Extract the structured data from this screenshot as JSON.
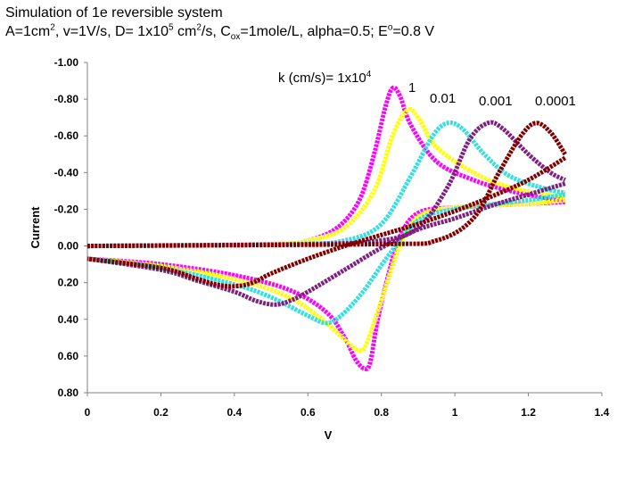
{
  "title": {
    "line1": "Simulation of 1e reversible system",
    "line2_parts": [
      {
        "t": "A=1cm"
      },
      {
        "t": "2",
        "s": "sup"
      },
      {
        "t": ", v=1V/s, D= 1x10"
      },
      {
        "t": "5",
        "s": "sup"
      },
      {
        "t": " cm"
      },
      {
        "t": "2",
        "s": "sup"
      },
      {
        "t": "/s, C"
      },
      {
        "t": "ox",
        "s": "sub"
      },
      {
        "t": "=1mole/L, alpha=0.5; E"
      },
      {
        "t": "o",
        "s": "sup"
      },
      {
        "t": "=0.8 V"
      }
    ]
  },
  "chart_data": {
    "type": "scatter",
    "xlabel": "V",
    "ylabel": "Current",
    "xlim": [
      0,
      1.4
    ],
    "ylim": [
      -1.0,
      0.8
    ],
    "y_inverted": true,
    "grid": false,
    "x_ticks": [
      "0",
      "0.2",
      "0.4",
      "0.6",
      "0.8",
      "1",
      "1.2",
      "1.4"
    ],
    "x_tick_values": [
      0,
      0.2,
      0.4,
      0.6,
      0.8,
      1.0,
      1.2,
      1.4
    ],
    "y_ticks": [
      "-1.00",
      "-0.80",
      "-0.60",
      "-0.40",
      "-0.20",
      "0.00",
      "0.20",
      "0.40",
      "0.60",
      "0.80"
    ],
    "y_tick_values": [
      -1.0,
      -0.8,
      -0.6,
      -0.4,
      -0.2,
      0.0,
      0.2,
      0.4,
      0.6,
      0.8
    ],
    "annotations": {
      "k_label": {
        "t": "k (cm/s)= 1x10",
        "sup": "4"
      },
      "labels": [
        "1",
        "0.01",
        "0.001",
        "0.0001"
      ]
    },
    "series": [
      {
        "label": "1x10^4",
        "color": "#ff00ff",
        "forward": [
          [
            0,
            0
          ],
          [
            0.5,
            -0.01
          ],
          [
            0.6,
            -0.03
          ],
          [
            0.68,
            -0.1
          ],
          [
            0.74,
            -0.25
          ],
          [
            0.78,
            -0.5
          ],
          [
            0.81,
            -0.75
          ],
          [
            0.83,
            -0.86
          ],
          [
            0.85,
            -0.82
          ],
          [
            0.88,
            -0.66
          ],
          [
            0.95,
            -0.46
          ],
          [
            1.05,
            -0.36
          ],
          [
            1.15,
            -0.3
          ],
          [
            1.25,
            -0.26
          ],
          [
            1.3,
            -0.25
          ]
        ],
        "reverse": [
          [
            1.3,
            -0.24
          ],
          [
            1.2,
            -0.23
          ],
          [
            1.0,
            -0.21
          ],
          [
            0.9,
            -0.18
          ],
          [
            0.85,
            -0.05
          ],
          [
            0.82,
            0.15
          ],
          [
            0.79,
            0.4
          ],
          [
            0.77,
            0.63
          ],
          [
            0.755,
            0.67
          ],
          [
            0.73,
            0.62
          ],
          [
            0.7,
            0.5
          ],
          [
            0.65,
            0.36
          ],
          [
            0.55,
            0.24
          ],
          [
            0.4,
            0.16
          ],
          [
            0.2,
            0.1
          ],
          [
            0,
            0.07
          ]
        ]
      },
      {
        "label": "1",
        "color": "#ffff00",
        "forward": [
          [
            0,
            0
          ],
          [
            0.5,
            -0.01
          ],
          [
            0.6,
            -0.03
          ],
          [
            0.7,
            -0.1
          ],
          [
            0.78,
            -0.3
          ],
          [
            0.83,
            -0.6
          ],
          [
            0.87,
            -0.74
          ],
          [
            0.9,
            -0.7
          ],
          [
            0.95,
            -0.54
          ],
          [
            1.05,
            -0.4
          ],
          [
            1.15,
            -0.32
          ],
          [
            1.25,
            -0.28
          ],
          [
            1.3,
            -0.26
          ]
        ],
        "reverse": [
          [
            1.3,
            -0.25
          ],
          [
            1.2,
            -0.23
          ],
          [
            1.0,
            -0.21
          ],
          [
            0.9,
            -0.16
          ],
          [
            0.85,
            0.0
          ],
          [
            0.8,
            0.3
          ],
          [
            0.76,
            0.53
          ],
          [
            0.74,
            0.57
          ],
          [
            0.71,
            0.53
          ],
          [
            0.65,
            0.42
          ],
          [
            0.55,
            0.28
          ],
          [
            0.4,
            0.18
          ],
          [
            0.2,
            0.11
          ],
          [
            0,
            0.07
          ]
        ]
      },
      {
        "label": "0.01",
        "color": "#33e0e0",
        "forward": [
          [
            0,
            0
          ],
          [
            0.55,
            -0.01
          ],
          [
            0.7,
            -0.03
          ],
          [
            0.8,
            -0.12
          ],
          [
            0.88,
            -0.38
          ],
          [
            0.94,
            -0.6
          ],
          [
            0.98,
            -0.67
          ],
          [
            1.02,
            -0.64
          ],
          [
            1.08,
            -0.5
          ],
          [
            1.15,
            -0.38
          ],
          [
            1.25,
            -0.31
          ],
          [
            1.3,
            -0.29
          ]
        ],
        "reverse": [
          [
            1.3,
            -0.28
          ],
          [
            1.2,
            -0.25
          ],
          [
            1.0,
            -0.2
          ],
          [
            0.9,
            -0.14
          ],
          [
            0.82,
            0.05
          ],
          [
            0.75,
            0.25
          ],
          [
            0.69,
            0.38
          ],
          [
            0.65,
            0.42
          ],
          [
            0.6,
            0.38
          ],
          [
            0.5,
            0.28
          ],
          [
            0.4,
            0.21
          ],
          [
            0.2,
            0.12
          ],
          [
            0,
            0.07
          ]
        ]
      },
      {
        "label": "0.001",
        "color": "#7f1f7f",
        "forward": [
          [
            0,
            0
          ],
          [
            0.6,
            -0.01
          ],
          [
            0.8,
            -0.03
          ],
          [
            0.9,
            -0.1
          ],
          [
            0.98,
            -0.32
          ],
          [
            1.04,
            -0.58
          ],
          [
            1.09,
            -0.67
          ],
          [
            1.13,
            -0.64
          ],
          [
            1.2,
            -0.5
          ],
          [
            1.26,
            -0.4
          ],
          [
            1.3,
            -0.36
          ]
        ],
        "reverse": [
          [
            1.3,
            -0.34
          ],
          [
            1.2,
            -0.28
          ],
          [
            1.1,
            -0.22
          ],
          [
            1.0,
            -0.15
          ],
          [
            0.9,
            -0.09
          ],
          [
            0.8,
            0.01
          ],
          [
            0.7,
            0.13
          ],
          [
            0.6,
            0.25
          ],
          [
            0.55,
            0.3
          ],
          [
            0.51,
            0.32
          ],
          [
            0.46,
            0.3
          ],
          [
            0.4,
            0.25
          ],
          [
            0.3,
            0.19
          ],
          [
            0.2,
            0.13
          ],
          [
            0,
            0.07
          ]
        ]
      },
      {
        "label": "0.0001",
        "color": "#800000",
        "forward": [
          [
            0,
            0
          ],
          [
            0.8,
            -0.01
          ],
          [
            0.95,
            -0.03
          ],
          [
            1.05,
            -0.15
          ],
          [
            1.12,
            -0.4
          ],
          [
            1.18,
            -0.6
          ],
          [
            1.22,
            -0.67
          ],
          [
            1.26,
            -0.62
          ],
          [
            1.3,
            -0.5
          ]
        ],
        "reverse": [
          [
            1.3,
            -0.48
          ],
          [
            1.2,
            -0.36
          ],
          [
            1.1,
            -0.27
          ],
          [
            1.0,
            -0.19
          ],
          [
            0.9,
            -0.12
          ],
          [
            0.8,
            -0.06
          ],
          [
            0.7,
            0.0
          ],
          [
            0.6,
            0.07
          ],
          [
            0.5,
            0.15
          ],
          [
            0.45,
            0.2
          ],
          [
            0.4,
            0.22
          ],
          [
            0.35,
            0.21
          ],
          [
            0.3,
            0.18
          ],
          [
            0.2,
            0.12
          ],
          [
            0,
            0.07
          ]
        ]
      }
    ]
  }
}
